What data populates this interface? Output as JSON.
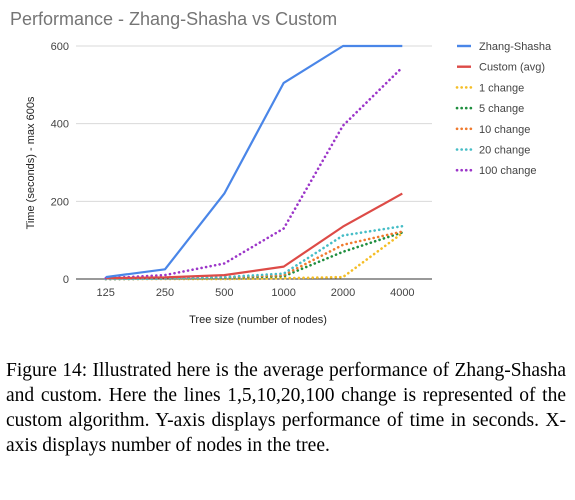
{
  "caption": "Figure 14: Illustrated here is the average performance of Zhang-Shasha and custom. Here the lines 1,5,10,20,100 change is represented of the custom algorithm. Y-axis displays performance of time in seconds. X-axis displays number of nodes in the tree.",
  "chart_data": {
    "type": "line",
    "title": "Performance - Zhang-Shasha vs Custom",
    "xlabel": "Tree size (number of nodes)",
    "ylabel": "Time (seconds) - max 600s",
    "categories": [
      "125",
      "250",
      "500",
      "1000",
      "2000",
      "4000"
    ],
    "yticks": [
      "0",
      "200",
      "400",
      "600"
    ],
    "ylim": [
      0,
      600
    ],
    "grid": true,
    "legend_position": "right",
    "series": [
      {
        "name": "Zhang-Shasha",
        "color": "#4a86e8",
        "style": "solid",
        "values": [
          5,
          25,
          220,
          505,
          600,
          600
        ]
      },
      {
        "name": "Custom (avg)",
        "color": "#dd4b47",
        "style": "solid",
        "values": [
          2,
          4,
          10,
          32,
          135,
          220
        ]
      },
      {
        "name": "1 change",
        "color": "#f5be26",
        "style": "dotted",
        "values": [
          0,
          0,
          0,
          2,
          5,
          118
        ]
      },
      {
        "name": "5 change",
        "color": "#1e8e3e",
        "style": "dotted",
        "values": [
          0,
          1,
          3,
          7,
          70,
          120
        ]
      },
      {
        "name": "10 change",
        "color": "#f07a2e",
        "style": "dotted",
        "values": [
          0,
          1,
          4,
          10,
          88,
          122
        ]
      },
      {
        "name": "20 change",
        "color": "#46bdc6",
        "style": "dotted",
        "values": [
          0,
          1,
          5,
          14,
          112,
          136
        ]
      },
      {
        "name": "100 change",
        "color": "#9c36c9",
        "style": "dotted",
        "values": [
          2,
          10,
          40,
          130,
          395,
          545
        ]
      }
    ]
  }
}
